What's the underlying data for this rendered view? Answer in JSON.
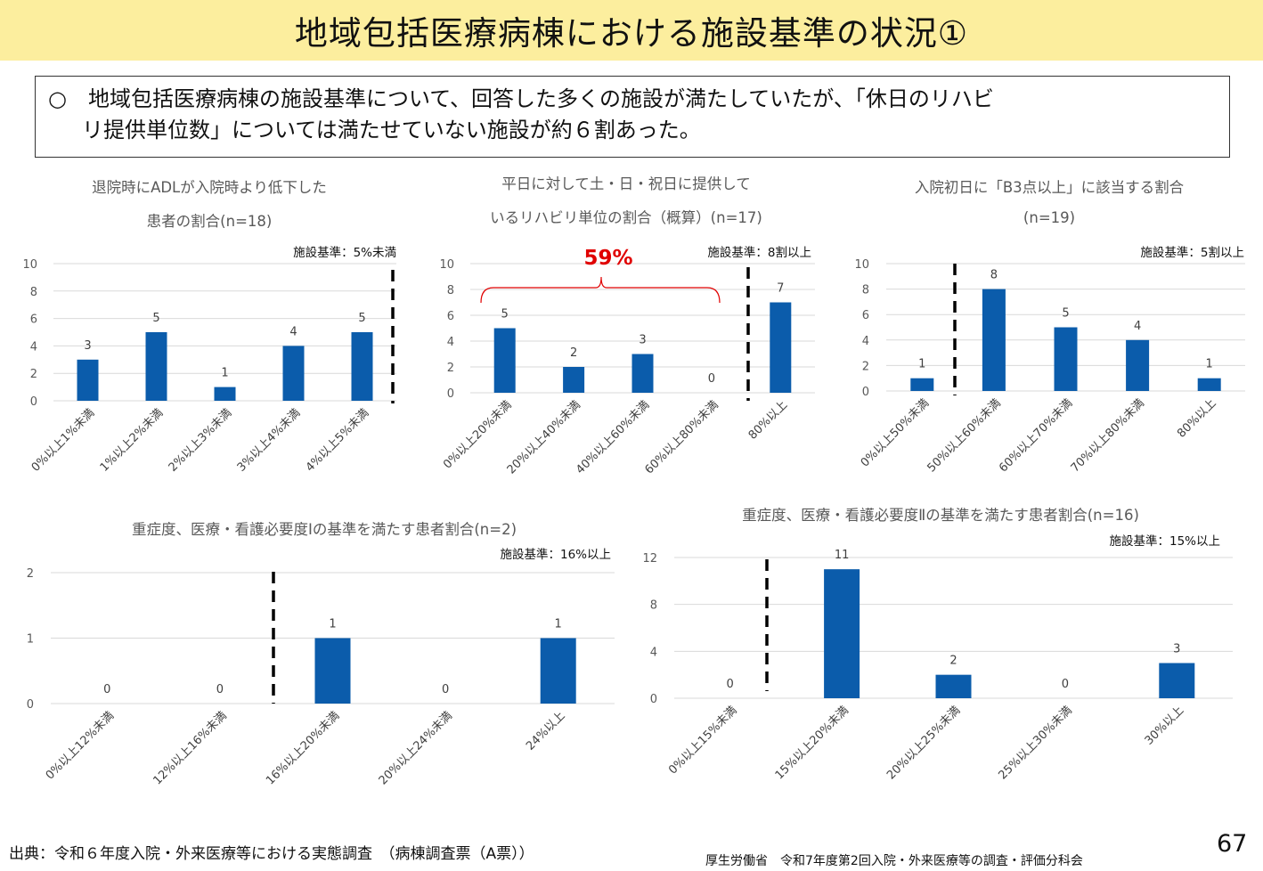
{
  "title": "地域包括医療病棟における施設基準の状況①",
  "summary": {
    "line1": "○　地域包括医療病棟の施設基準について、回答した多くの施設が満たしていたが、「休日のリハビ",
    "line2": "リ提供単位数」については満たせていない施設が約６割あった。"
  },
  "colors": {
    "bar": "#0b5cab",
    "accent": "#e00000",
    "title_bg": "#fcee9e",
    "grid": "#d9d9d9"
  },
  "chart_data": [
    {
      "type": "bar",
      "title_lines": [
        "退院時にADLが入院時より低下した",
        "患者の割合(n=18)"
      ],
      "standard_label": "施設基準：5%未満",
      "categories": [
        "0%以上1%未満",
        "1%以上2%未満",
        "2%以上3%未満",
        "3%以上4%未満",
        "4%以上5%未満"
      ],
      "values": [
        3,
        5,
        1,
        4,
        5
      ],
      "ylim": [
        0,
        10
      ],
      "yticks": [
        0,
        2,
        4,
        6,
        8,
        10
      ],
      "grid": true
    },
    {
      "type": "bar",
      "title_lines": [
        "平日に対して土・日・祝日に提供して",
        "いるリハビリ単位の割合（概算）(n=17)"
      ],
      "standard_label": "施設基準：8割以上",
      "categories": [
        "0%以上20%未満",
        "20%以上40%未満",
        "40%以上60%未満",
        "60%以上80%未満",
        "80%以上"
      ],
      "values": [
        5,
        2,
        3,
        0,
        7
      ],
      "ylim": [
        0,
        10
      ],
      "yticks": [
        0,
        2,
        4,
        6,
        8,
        10
      ],
      "grid": true,
      "annotation": "59%"
    },
    {
      "type": "bar",
      "title_lines": [
        "入院初日に「B3点以上」に該当する割合",
        "(n=19)"
      ],
      "standard_label": "施設基準：5割以上",
      "categories": [
        "0%以上50%未満",
        "50%以上60%未満",
        "60%以上70%未満",
        "70%以上80%未満",
        "80%以上"
      ],
      "values": [
        1,
        8,
        5,
        4,
        1
      ],
      "ylim": [
        0,
        10
      ],
      "yticks": [
        0,
        2,
        4,
        6,
        8,
        10
      ],
      "grid": true
    },
    {
      "type": "bar",
      "title_lines": [
        "重症度、医療・看護必要度Ⅰの基準を満たす患者割合(n=2)"
      ],
      "standard_label": "施設基準：16%以上",
      "categories": [
        "0%以上12%未満",
        "12%以上16%未満",
        "16%以上20%未満",
        "20%以上24%未満",
        "24%以上"
      ],
      "values": [
        0,
        0,
        1,
        0,
        1
      ],
      "ylim": [
        0,
        2
      ],
      "yticks": [
        0,
        1,
        2
      ],
      "grid": true
    },
    {
      "type": "bar",
      "title_lines": [
        "重症度、医療・看護必要度Ⅱの基準を満たす患者割合(n=16)"
      ],
      "standard_label": "施設基準：15%以上",
      "categories": [
        "0%以上15%未満",
        "15%以上20%未満",
        "20%以上25%未満",
        "25%以上30%未満",
        "30%以上"
      ],
      "values": [
        0,
        11,
        2,
        0,
        3
      ],
      "ylim": [
        0,
        12
      ],
      "yticks": [
        0,
        4,
        8,
        12
      ],
      "grid": true
    }
  ],
  "footer": {
    "source": "出典：令和６年度入院・外来医療等における実態調査　（病棟調査票（A票））",
    "org": "厚生労働省　令和7年度第2回入院・外来医療等の調査・評価分科会",
    "page": "67"
  }
}
